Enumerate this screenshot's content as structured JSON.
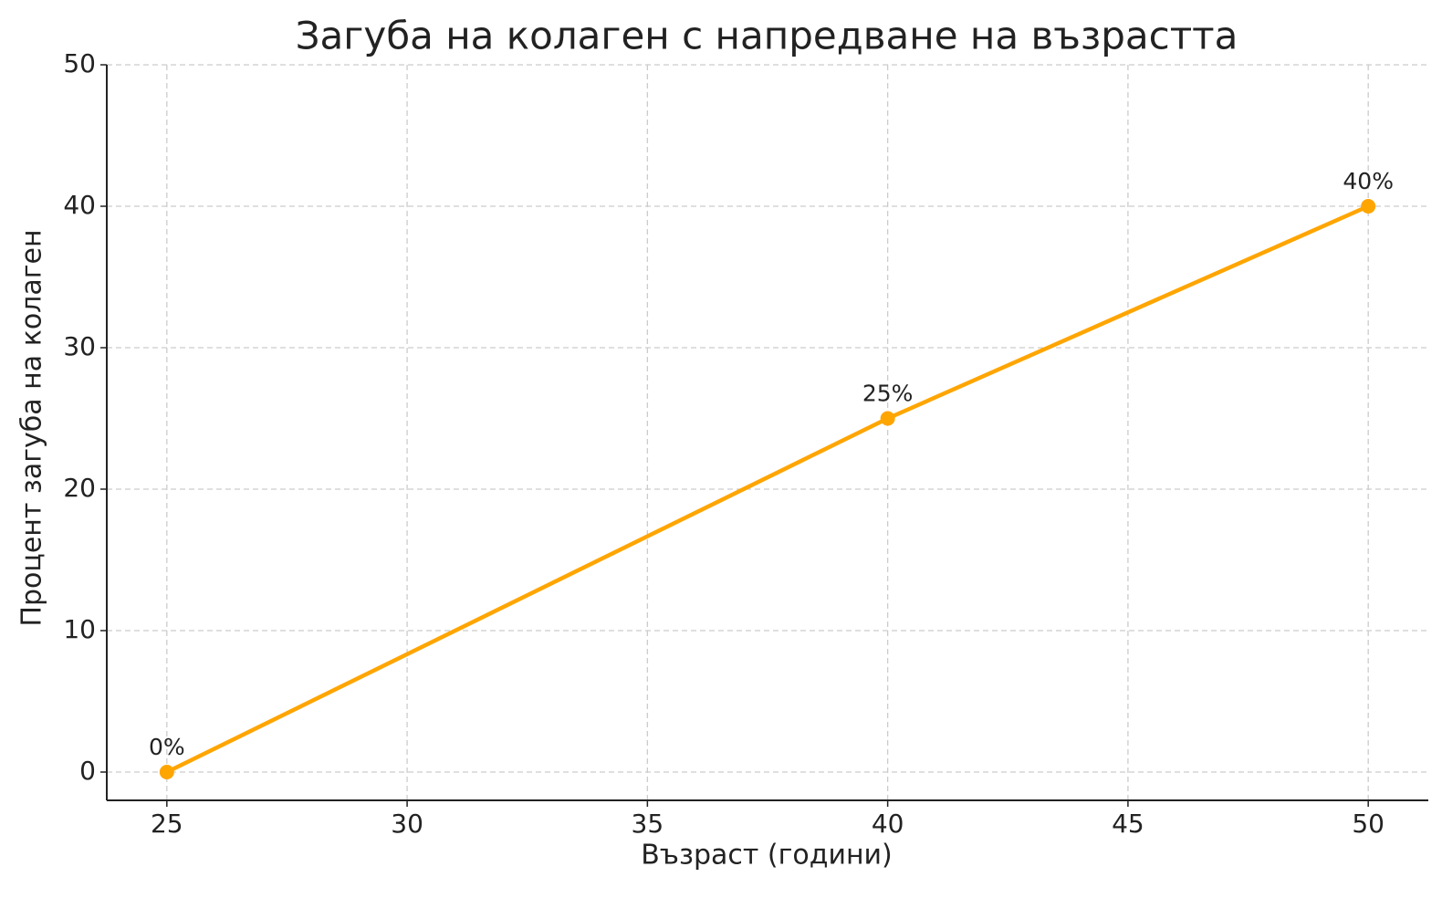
{
  "chart_data": {
    "type": "line",
    "title": "Загуба на колаген с напредване на възрастта",
    "x_label": "Възраст (години)",
    "y_label": "Процент загуба на колаген",
    "x": [
      25,
      40,
      50
    ],
    "series": [
      {
        "color": "#ffa500",
        "values": [
          0,
          25,
          40
        ],
        "value_labels": [
          "0%",
          "25%",
          "40%"
        ]
      }
    ],
    "xlim": [
      23.75,
      51.25
    ],
    "xticks": [
      25,
      30,
      35,
      40,
      45,
      50
    ],
    "ylim": [
      -2,
      50
    ],
    "yticks": [
      0,
      10,
      20,
      30,
      40,
      50
    ],
    "grid": true
  }
}
